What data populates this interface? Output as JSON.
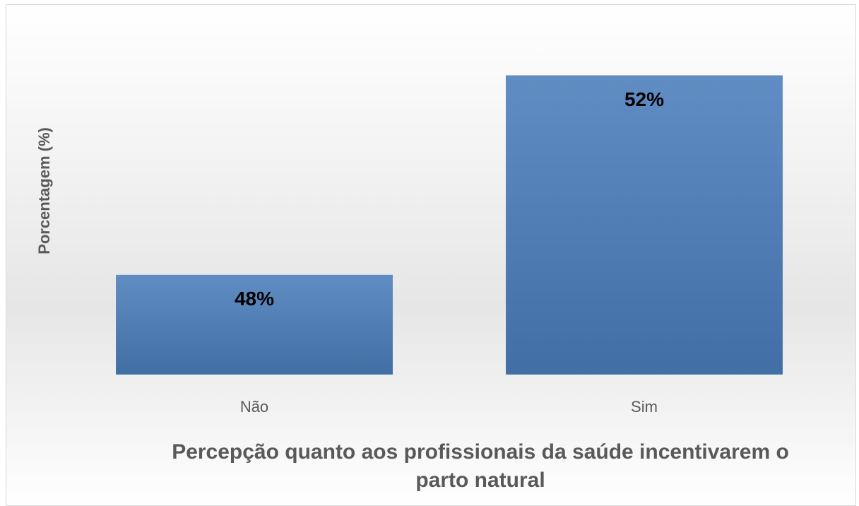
{
  "chart_data": {
    "type": "bar",
    "x_label": "Percepção quanto aos profissionais da saúde incentivarem o parto natural",
    "y_label": "Porcentagem (%)",
    "categories": [
      "Não",
      "Sim"
    ],
    "values": [
      48,
      52
    ],
    "value_labels": [
      "48%",
      "52%"
    ],
    "color": "#4a7ebb",
    "ylim": [
      46,
      53
    ]
  }
}
